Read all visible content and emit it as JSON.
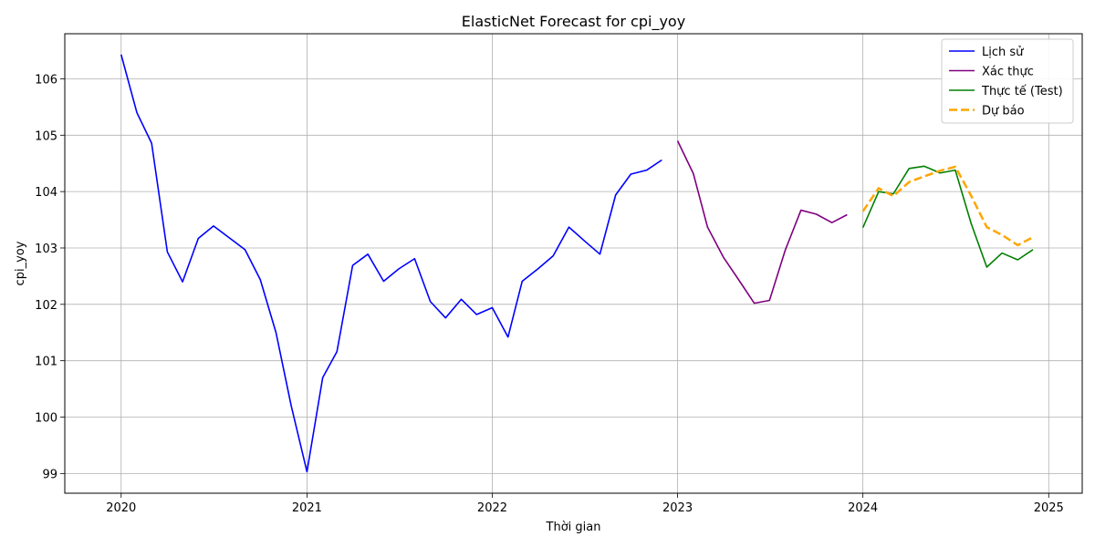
{
  "chart_data": {
    "type": "line",
    "title": "ElasticNet Forecast for cpi_yoy",
    "xlabel": "Thời gian",
    "ylabel": "cpi_yoy",
    "grid": true,
    "legend_position": "top-right",
    "xlim": [
      "2019-09-12",
      "2025-03-08"
    ],
    "ylim": [
      98.65,
      106.8
    ],
    "x_ticks": [
      "2020-01-01",
      "2021-01-01",
      "2022-01-01",
      "2023-01-01",
      "2024-01-01",
      "2025-01-01"
    ],
    "x_tick_labels": [
      "2020",
      "2021",
      "2022",
      "2023",
      "2024",
      "2025"
    ],
    "y_ticks": [
      99,
      100,
      101,
      102,
      103,
      104,
      105,
      106
    ],
    "series": [
      {
        "name": "Lịch sử",
        "color": "#0000ff",
        "dash": "solid",
        "x": [
          "2020-01-01",
          "2020-02-01",
          "2020-03-01",
          "2020-04-01",
          "2020-05-01",
          "2020-06-01",
          "2020-07-01",
          "2020-08-01",
          "2020-09-01",
          "2020-10-01",
          "2020-11-01",
          "2020-12-01",
          "2021-01-01",
          "2021-02-01",
          "2021-03-01",
          "2021-04-01",
          "2021-05-01",
          "2021-06-01",
          "2021-07-01",
          "2021-08-01",
          "2021-09-01",
          "2021-10-01",
          "2021-11-01",
          "2021-12-01",
          "2022-01-01",
          "2022-02-01",
          "2022-03-01",
          "2022-04-01",
          "2022-05-01",
          "2022-06-01",
          "2022-07-01",
          "2022-08-01",
          "2022-09-01",
          "2022-10-01",
          "2022-11-01",
          "2022-12-01"
        ],
        "y": [
          106.43,
          105.4,
          104.86,
          102.93,
          102.4,
          103.17,
          103.39,
          103.18,
          102.97,
          102.44,
          101.5,
          100.2,
          99.03,
          100.7,
          101.16,
          102.69,
          102.89,
          102.41,
          102.63,
          102.81,
          102.05,
          101.76,
          102.09,
          101.82,
          101.94,
          101.42,
          102.41,
          102.63,
          102.86,
          103.37,
          103.13,
          102.89,
          103.94,
          104.31,
          104.38,
          104.56
        ]
      },
      {
        "name": "Xác thực",
        "color": "#800080",
        "dash": "solid",
        "x": [
          "2023-01-01",
          "2023-02-01",
          "2023-03-01",
          "2023-04-01",
          "2023-05-01",
          "2023-06-01",
          "2023-07-01",
          "2023-08-01",
          "2023-09-01",
          "2023-10-01",
          "2023-11-01",
          "2023-12-01"
        ],
        "y": [
          104.9,
          104.32,
          103.37,
          102.84,
          102.44,
          102.02,
          102.07,
          102.96,
          103.67,
          103.6,
          103.45,
          103.59
        ]
      },
      {
        "name": "Thực tế (Test)",
        "color": "#008000",
        "dash": "solid",
        "x": [
          "2024-01-01",
          "2024-02-01",
          "2024-03-01",
          "2024-04-01",
          "2024-05-01",
          "2024-06-01",
          "2024-07-01",
          "2024-08-01",
          "2024-09-01",
          "2024-10-01",
          "2024-11-01",
          "2024-12-01"
        ],
        "y": [
          103.36,
          104.0,
          103.96,
          104.41,
          104.45,
          104.33,
          104.38,
          103.44,
          102.66,
          102.91,
          102.79,
          102.97
        ]
      },
      {
        "name": "Dự báo",
        "color": "#ffa500",
        "dash": "dashed",
        "x": [
          "2024-01-01",
          "2024-02-01",
          "2024-03-01",
          "2024-04-01",
          "2024-05-01",
          "2024-06-01",
          "2024-07-01",
          "2024-08-01",
          "2024-09-01",
          "2024-10-01",
          "2024-11-01",
          "2024-12-01"
        ],
        "y": [
          103.65,
          104.06,
          103.92,
          104.17,
          104.27,
          104.37,
          104.44,
          103.93,
          103.37,
          103.23,
          103.05,
          103.19
        ]
      }
    ]
  }
}
